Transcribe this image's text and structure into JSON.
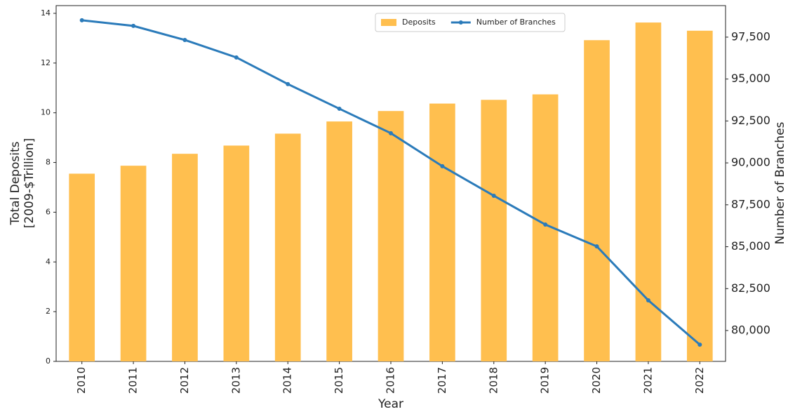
{
  "chart_data": {
    "type": "bar_line",
    "xlabel": "Year",
    "ylabel": [
      "Total Deposits",
      "[2009-$Trillion]"
    ],
    "y2label": "Number of Branches",
    "categories": [
      "2010",
      "2011",
      "2012",
      "2013",
      "2014",
      "2015",
      "2016",
      "2017",
      "2018",
      "2019",
      "2020",
      "2021",
      "2022"
    ],
    "series": [
      {
        "name": "Deposits",
        "type": "bar",
        "color": "#ffbf4f",
        "values": [
          7.55,
          7.87,
          8.35,
          8.68,
          9.16,
          9.65,
          10.07,
          10.37,
          10.52,
          10.74,
          12.92,
          13.63,
          13.3
        ]
      },
      {
        "name": "Number of Branches",
        "type": "line",
        "axis": "y2",
        "color": "#2b7bba",
        "values": [
          98505,
          98170,
          97330,
          96290,
          94700,
          93230,
          91770,
          89800,
          88040,
          86320,
          85020,
          81800,
          79160
        ]
      }
    ],
    "ylim": [
      0,
      14.31
    ],
    "yticks": [
      0,
      2,
      4,
      6,
      8,
      10,
      12,
      14
    ],
    "y2lim": [
      78160,
      99380
    ],
    "y2ticks": [
      {
        "value": 80000,
        "label": "80,000"
      },
      {
        "value": 82500,
        "label": "82,500"
      },
      {
        "value": 85000,
        "label": "85,000"
      },
      {
        "value": 87500,
        "label": "87,500"
      },
      {
        "value": 90000,
        "label": "90,000"
      },
      {
        "value": 92500,
        "label": "92,500"
      },
      {
        "value": 95000,
        "label": "95,000"
      },
      {
        "value": 97500,
        "label": "97,500"
      }
    ],
    "legend": "upper center",
    "grid": false
  }
}
